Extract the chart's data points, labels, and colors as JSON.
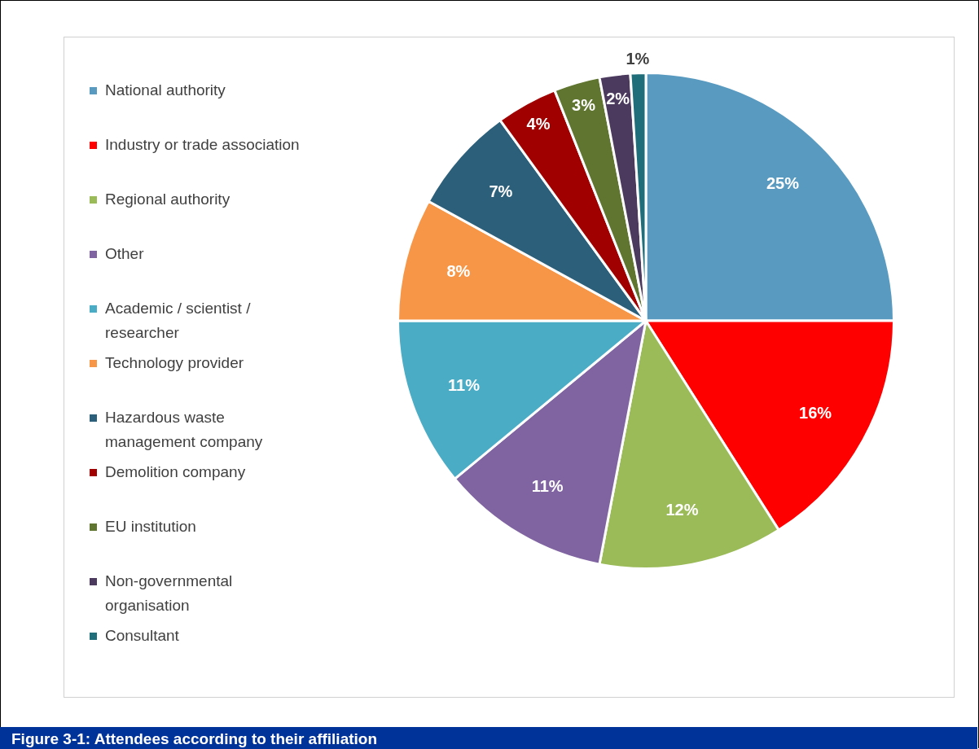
{
  "chart_data": {
    "type": "pie",
    "title": "Figure 3-1:  Attendees according to their affiliation",
    "categories": [
      "National authority",
      "Industry or trade association",
      "Regional authority",
      "Other",
      "Academic / scientist / researcher",
      "Technology provider",
      "Hazardous waste management company",
      "Demolition company",
      "EU institution",
      "Non-governmental organisation",
      "Consultant"
    ],
    "values": [
      25,
      16,
      12,
      11,
      11,
      8,
      7,
      4,
      3,
      2,
      1
    ],
    "colors": [
      "#599ac0",
      "#ff0000",
      "#9bbb59",
      "#8064a2",
      "#4bacc6",
      "#f79646",
      "#2c5f7a",
      "#a00000",
      "#5f7530",
      "#4b3a5e",
      "#1f6e7a"
    ],
    "value_labels": [
      "25%",
      "16%",
      "12%",
      "11%",
      "11%",
      "8%",
      "7%",
      "4%",
      "3%",
      "2%",
      "1%"
    ],
    "legend": "left"
  }
}
